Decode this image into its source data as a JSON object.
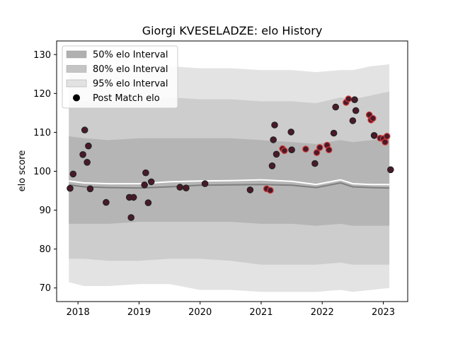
{
  "chart_data": {
    "type": "scatter",
    "title": "Giorgi KVESELADZE: elo History",
    "xlabel": "",
    "ylabel": "elo score",
    "xlim": [
      2017.65,
      2023.4
    ],
    "ylim": [
      66.5,
      133.5
    ],
    "x_ticks": [
      2018,
      2019,
      2020,
      2021,
      2022,
      2023
    ],
    "x_tick_labels": [
      "2018",
      "2019",
      "2020",
      "2021",
      "2022",
      "2023"
    ],
    "y_ticks": [
      70,
      80,
      90,
      100,
      110,
      120,
      130
    ],
    "y_tick_labels": [
      "70",
      "80",
      "90",
      "100",
      "110",
      "120",
      "130"
    ],
    "grid": false,
    "legend_position": "top-left",
    "legend": [
      {
        "label": "50% elo Interval",
        "kind": "band",
        "color": "#b0b0b0"
      },
      {
        "label": "80% elo Interval",
        "kind": "band",
        "color": "#c4c4c4"
      },
      {
        "label": "95% elo Interval",
        "kind": "band",
        "color": "#e2e2e2"
      },
      {
        "label": "Post Match elo",
        "kind": "marker",
        "color": "#000000"
      }
    ],
    "colors": {
      "band50": "#b5b5b5",
      "band80": "#cdcdcd",
      "band95": "#e3e3e3",
      "mean_line": "#ffffff",
      "median_line": "#7f7f7f",
      "point_fill": "#4a1a28",
      "point_edge_dark": "#222222",
      "point_edge_red": "#d63a3a"
    },
    "bands": {
      "x": [
        2017.85,
        2018.1,
        2018.5,
        2019.0,
        2019.5,
        2020.0,
        2020.5,
        2021.0,
        2021.5,
        2021.9,
        2022.3,
        2022.5,
        2022.8,
        2023.1
      ],
      "p95_upper": [
        125.0,
        125.5,
        125.5,
        126.5,
        127.0,
        126.5,
        126.5,
        126.0,
        126.0,
        125.5,
        126.0,
        126.0,
        127.0,
        127.5
      ],
      "p80_upper": [
        117.5,
        118.0,
        118.0,
        118.5,
        119.0,
        118.5,
        118.5,
        118.0,
        118.0,
        117.5,
        119.0,
        118.5,
        119.5,
        120.5
      ],
      "p50_upper": [
        109.0,
        108.5,
        108.0,
        108.5,
        108.5,
        108.5,
        108.5,
        108.0,
        107.5,
        107.0,
        108.0,
        107.5,
        108.0,
        108.5
      ],
      "median": [
        96.5,
        96.0,
        95.8,
        95.7,
        96.0,
        96.4,
        96.5,
        96.6,
        96.4,
        95.8,
        97.0,
        96.0,
        95.8,
        95.7
      ],
      "mean": [
        97.5,
        97.0,
        96.8,
        96.8,
        97.3,
        97.5,
        97.6,
        97.8,
        97.4,
        96.6,
        97.8,
        96.8,
        96.6,
        96.6
      ],
      "p50_lower": [
        86.5,
        86.5,
        86.5,
        87.0,
        87.0,
        87.0,
        87.0,
        86.5,
        86.5,
        86.0,
        86.5,
        86.0,
        86.0,
        86.0
      ],
      "p80_lower": [
        77.5,
        77.5,
        77.0,
        77.0,
        77.5,
        77.5,
        77.0,
        76.0,
        76.0,
        76.0,
        76.5,
        76.0,
        76.0,
        76.0
      ],
      "p95_lower": [
        71.5,
        70.5,
        70.5,
        71.0,
        71.0,
        69.5,
        69.5,
        69.0,
        69.0,
        69.0,
        69.5,
        69.0,
        69.5,
        70.0
      ]
    },
    "points": [
      {
        "x": 2017.87,
        "y": 95.6,
        "edge": "dark"
      },
      {
        "x": 2017.92,
        "y": 99.3,
        "edge": "dark"
      },
      {
        "x": 2018.08,
        "y": 104.3,
        "edge": "dark"
      },
      {
        "x": 2018.11,
        "y": 110.6,
        "edge": "dark"
      },
      {
        "x": 2018.15,
        "y": 102.3,
        "edge": "dark"
      },
      {
        "x": 2018.17,
        "y": 106.5,
        "edge": "dark"
      },
      {
        "x": 2018.2,
        "y": 95.5,
        "edge": "dark"
      },
      {
        "x": 2018.46,
        "y": 92.0,
        "edge": "dark"
      },
      {
        "x": 2018.84,
        "y": 93.3,
        "edge": "dark"
      },
      {
        "x": 2018.87,
        "y": 88.1,
        "edge": "dark"
      },
      {
        "x": 2018.91,
        "y": 93.3,
        "edge": "dark"
      },
      {
        "x": 2019.09,
        "y": 96.5,
        "edge": "dark"
      },
      {
        "x": 2019.11,
        "y": 99.6,
        "edge": "dark"
      },
      {
        "x": 2019.15,
        "y": 91.9,
        "edge": "dark"
      },
      {
        "x": 2019.2,
        "y": 97.3,
        "edge": "dark"
      },
      {
        "x": 2019.67,
        "y": 95.9,
        "edge": "dark"
      },
      {
        "x": 2019.77,
        "y": 95.7,
        "edge": "dark"
      },
      {
        "x": 2020.08,
        "y": 96.8,
        "edge": "dark"
      },
      {
        "x": 2020.82,
        "y": 95.2,
        "edge": "dark"
      },
      {
        "x": 2021.09,
        "y": 95.5,
        "edge": "red"
      },
      {
        "x": 2021.15,
        "y": 95.1,
        "edge": "red"
      },
      {
        "x": 2021.18,
        "y": 101.4,
        "edge": "dark"
      },
      {
        "x": 2021.2,
        "y": 108.1,
        "edge": "dark"
      },
      {
        "x": 2021.22,
        "y": 111.9,
        "edge": "dark"
      },
      {
        "x": 2021.25,
        "y": 104.4,
        "edge": "dark"
      },
      {
        "x": 2021.35,
        "y": 105.8,
        "edge": "red"
      },
      {
        "x": 2021.38,
        "y": 105.3,
        "edge": "red"
      },
      {
        "x": 2021.49,
        "y": 110.1,
        "edge": "dark"
      },
      {
        "x": 2021.5,
        "y": 105.5,
        "edge": "dark"
      },
      {
        "x": 2021.73,
        "y": 105.7,
        "edge": "red"
      },
      {
        "x": 2021.88,
        "y": 102.0,
        "edge": "dark"
      },
      {
        "x": 2021.91,
        "y": 104.8,
        "edge": "red"
      },
      {
        "x": 2021.96,
        "y": 106.1,
        "edge": "red"
      },
      {
        "x": 2022.08,
        "y": 106.7,
        "edge": "red"
      },
      {
        "x": 2022.11,
        "y": 105.5,
        "edge": "red"
      },
      {
        "x": 2022.19,
        "y": 109.8,
        "edge": "dark"
      },
      {
        "x": 2022.22,
        "y": 116.5,
        "edge": "dark"
      },
      {
        "x": 2022.39,
        "y": 117.7,
        "edge": "red"
      },
      {
        "x": 2022.43,
        "y": 118.6,
        "edge": "red"
      },
      {
        "x": 2022.5,
        "y": 113.0,
        "edge": "dark"
      },
      {
        "x": 2022.53,
        "y": 118.4,
        "edge": "dark"
      },
      {
        "x": 2022.55,
        "y": 115.6,
        "edge": "dark"
      },
      {
        "x": 2022.77,
        "y": 114.5,
        "edge": "red"
      },
      {
        "x": 2022.8,
        "y": 113.2,
        "edge": "red"
      },
      {
        "x": 2022.83,
        "y": 113.6,
        "edge": "red"
      },
      {
        "x": 2022.85,
        "y": 109.2,
        "edge": "dark"
      },
      {
        "x": 2022.95,
        "y": 108.5,
        "edge": "red"
      },
      {
        "x": 2023.0,
        "y": 108.4,
        "edge": "red"
      },
      {
        "x": 2023.03,
        "y": 107.5,
        "edge": "red"
      },
      {
        "x": 2023.06,
        "y": 109.0,
        "edge": "red"
      },
      {
        "x": 2023.12,
        "y": 100.4,
        "edge": "dark"
      }
    ]
  }
}
